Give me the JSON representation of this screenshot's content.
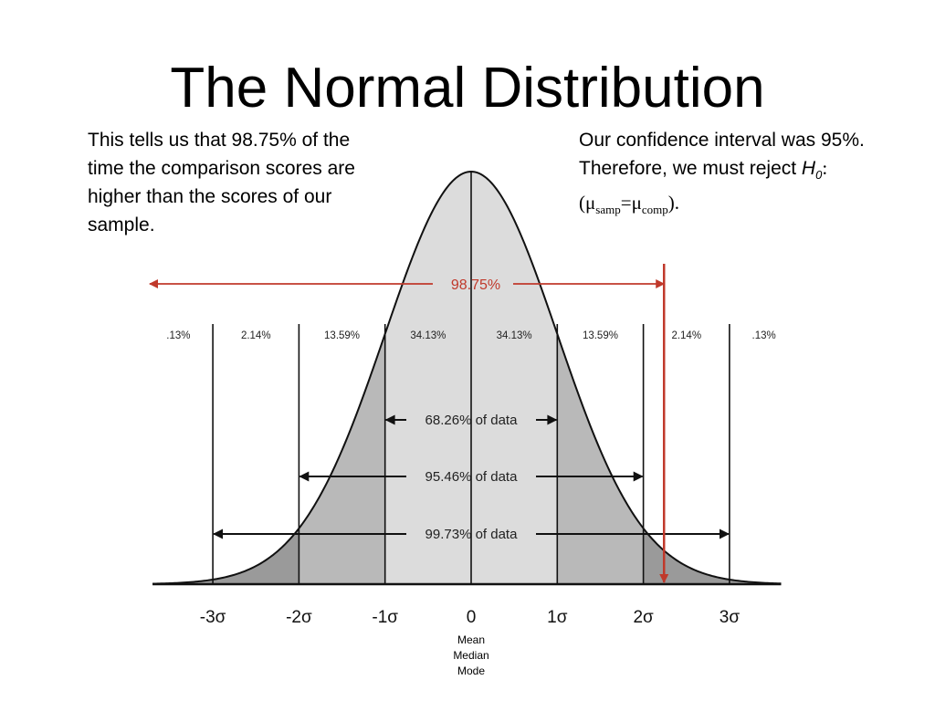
{
  "title": "The Normal Distribution",
  "note_left": "This tells us that 98.75% of the time the comparison scores are higher than the scores of our sample.",
  "note_right": {
    "line1": "Our confidence interval was 95%. Therefore, we must reject ",
    "hypothesis": "H",
    "hypothesis_sub": "0",
    "colon": ": (",
    "mu1": "μ",
    "mu1_sub": "samp",
    "equals": "=",
    "mu2": "μ",
    "mu2_sub": "comp",
    "close": ")."
  },
  "chart_data": {
    "type": "area",
    "title": "The Normal Distribution",
    "x_ticks": [
      "-3σ",
      "-2σ",
      "-1σ",
      "0",
      "1σ",
      "2σ",
      "3σ"
    ],
    "xlim": [
      -3.7,
      3.6
    ],
    "segments": [
      {
        "range": "<-3σ",
        "label": ".13%",
        "value": 0.13
      },
      {
        "range": "-3σ to -2σ",
        "label": "2.14%",
        "value": 2.14
      },
      {
        "range": "-2σ to -1σ",
        "label": "13.59%",
        "value": 13.59
      },
      {
        "range": "-1σ to 0",
        "label": "34.13%",
        "value": 34.13
      },
      {
        "range": "0 to 1σ",
        "label": "34.13%",
        "value": 34.13
      },
      {
        "range": "1σ to 2σ",
        "label": "13.59%",
        "value": 13.59
      },
      {
        "range": "2σ to 3σ",
        "label": "2.14%",
        "value": 2.14
      },
      {
        "range": ">3σ",
        "label": ".13%",
        "value": 0.13
      }
    ],
    "intervals": [
      {
        "label": "68.26% of data",
        "from": -1,
        "to": 1
      },
      {
        "label": "95.46% of data",
        "from": -2,
        "to": 2
      },
      {
        "label": "99.73% of data",
        "from": -3,
        "to": 3
      }
    ],
    "threshold": {
      "z": 2.24,
      "label": "98.75%",
      "color": "#c0392b"
    },
    "center_label": [
      "Mean",
      "Median",
      "Mode"
    ],
    "colors": {
      "light": "#dcdcdc",
      "mid": "#b9b9b9",
      "dark": "#9a9a9a",
      "line": "#111111",
      "accent": "#c0392b"
    }
  }
}
